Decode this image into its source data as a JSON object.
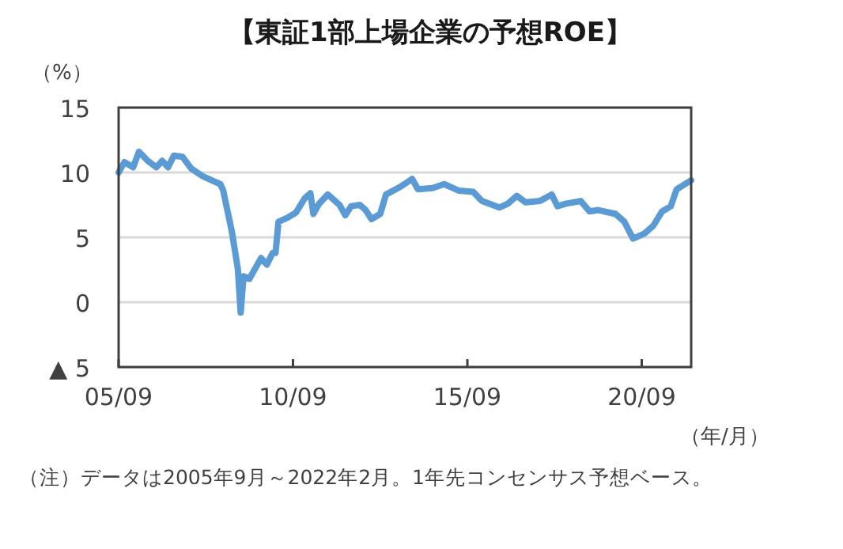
{
  "chart_data": {
    "type": "line",
    "title": "【東証1部上場企業の予想ROE】",
    "ylabel": "（%）",
    "xlabel": "（年/月）",
    "x": [
      "2005-09",
      "2005-11",
      "2006-02",
      "2006-04",
      "2006-07",
      "2006-10",
      "2006-12",
      "2007-02",
      "2007-04",
      "2007-07",
      "2007-10",
      "2008-02",
      "2008-05",
      "2008-08",
      "2008-09",
      "2008-12",
      "2009-02",
      "2009-03",
      "2009-04",
      "2009-06",
      "2009-10",
      "2009-12",
      "2010-02",
      "2010-03",
      "2010-04",
      "2010-07",
      "2010-10",
      "2011-01",
      "2011-03",
      "2011-04",
      "2011-06",
      "2011-09",
      "2012-01",
      "2012-03",
      "2012-05",
      "2012-08",
      "2012-10",
      "2012-12",
      "2013-03",
      "2013-05",
      "2013-10",
      "2014-02",
      "2014-04",
      "2014-09",
      "2015-01",
      "2015-06",
      "2015-11",
      "2016-02",
      "2016-08",
      "2016-11",
      "2017-02",
      "2017-05",
      "2017-10",
      "2018-02",
      "2018-04",
      "2018-07",
      "2018-12",
      "2019-03",
      "2019-06",
      "2019-12",
      "2020-03",
      "2020-06",
      "2020-10",
      "2021-01",
      "2021-04",
      "2021-07",
      "2021-09",
      "2022-02"
    ],
    "series": [
      {
        "color": "#5b9bd5",
        "values": [
          10.0,
          10.8,
          10.4,
          11.6,
          10.9,
          10.4,
          10.9,
          10.4,
          11.3,
          11.2,
          10.3,
          9.7,
          9.4,
          9.1,
          8.6,
          5.4,
          2.6,
          -0.8,
          2.0,
          1.8,
          3.4,
          2.9,
          3.8,
          3.8,
          6.2,
          6.5,
          6.9,
          8.0,
          8.4,
          6.8,
          7.6,
          8.3,
          7.5,
          6.7,
          7.4,
          7.5,
          7.1,
          6.4,
          6.8,
          8.3,
          8.9,
          9.5,
          8.7,
          8.8,
          9.1,
          8.6,
          8.5,
          7.8,
          7.3,
          7.6,
          8.2,
          7.7,
          7.8,
          8.3,
          7.4,
          7.6,
          7.8,
          7.0,
          7.1,
          6.8,
          6.2,
          4.9,
          5.3,
          5.9,
          7.0,
          7.4,
          8.7,
          9.4
        ]
      }
    ],
    "xlim": [
      "2005-09",
      "2022-02"
    ],
    "xticks": [
      {
        "value": "2005-09",
        "label": "05/09"
      },
      {
        "value": "2010-09",
        "label": "10/09"
      },
      {
        "value": "2015-09",
        "label": "15/09"
      },
      {
        "value": "2020-09",
        "label": "20/09"
      }
    ],
    "ylim": [
      -5,
      15
    ],
    "yticks": [
      {
        "value": -5,
        "label": "▲ 5"
      },
      0,
      5,
      10,
      15
    ],
    "grid": "y",
    "annotations": [
      "（注）データは2005年9月～2022年2月。1年先コンセンサス予想ベース。"
    ]
  }
}
